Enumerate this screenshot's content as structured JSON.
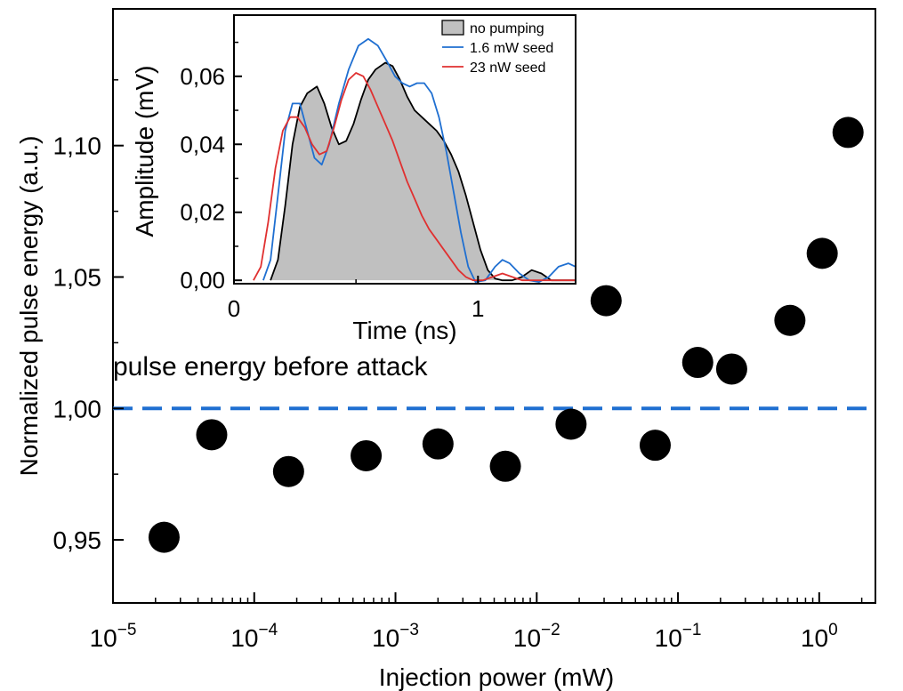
{
  "chart_data": [
    {
      "type": "scatter",
      "xlabel": "Injection power (mW)",
      "ylabel": "Normalized pulse energy (a.u.)",
      "xscale": "log",
      "xlim": [
        1e-05,
        2.5
      ],
      "ylim": [
        0.926,
        1.152
      ],
      "x_ticks": [
        {
          "value": 1e-05,
          "base": "10",
          "exp": "−5"
        },
        {
          "value": 0.0001,
          "base": "10",
          "exp": "−4"
        },
        {
          "value": 0.001,
          "base": "10",
          "exp": "−3"
        },
        {
          "value": 0.01,
          "base": "10",
          "exp": "−2"
        },
        {
          "value": 0.1,
          "base": "10",
          "exp": "−1"
        },
        {
          "value": 1,
          "base": "10",
          "exp": "0"
        }
      ],
      "y_ticks": [
        {
          "value": 0.95,
          "label": "0,95"
        },
        {
          "value": 1.0,
          "label": "1,00"
        },
        {
          "value": 1.05,
          "label": "1,05"
        },
        {
          "value": 1.1,
          "label": "1,10"
        }
      ],
      "points": [
        {
          "x": 2.3e-05,
          "y": 0.951
        },
        {
          "x": 5e-05,
          "y": 0.99
        },
        {
          "x": 0.000175,
          "y": 0.976
        },
        {
          "x": 0.00062,
          "y": 0.982
        },
        {
          "x": 0.002,
          "y": 0.9865
        },
        {
          "x": 0.006,
          "y": 0.978
        },
        {
          "x": 0.0175,
          "y": 0.994
        },
        {
          "x": 0.031,
          "y": 1.041
        },
        {
          "x": 0.069,
          "y": 0.986
        },
        {
          "x": 0.138,
          "y": 1.0175
        },
        {
          "x": 0.24,
          "y": 1.015
        },
        {
          "x": 0.62,
          "y": 1.0335
        },
        {
          "x": 1.05,
          "y": 1.059
        },
        {
          "x": 1.6,
          "y": 1.105
        }
      ],
      "point_color": "#000000",
      "reference_line": {
        "y": 1.0,
        "label": "pulse energy before attack",
        "color": "#1f6fd1"
      }
    },
    {
      "type": "line",
      "xlabel": "Time (ns)",
      "ylabel": "Amplitude (mV)",
      "xlim": [
        0,
        1.4
      ],
      "ylim": [
        -0.001,
        0.078
      ],
      "x_ticks": [
        {
          "value": 0,
          "label": "0"
        },
        {
          "value": 1,
          "label": "1"
        }
      ],
      "y_ticks": [
        {
          "value": 0,
          "label": "0,00"
        },
        {
          "value": 0.02,
          "label": "0,02"
        },
        {
          "value": 0.04,
          "label": "0,04"
        },
        {
          "value": 0.06,
          "label": "0,06"
        }
      ],
      "series": [
        {
          "name": "no pumping",
          "style": "filled",
          "color": "#000000",
          "fill": "#c0c0c0",
          "points": [
            [
              0.15,
              0
            ],
            [
              0.18,
              0.006
            ],
            [
              0.21,
              0.022
            ],
            [
              0.24,
              0.04
            ],
            [
              0.27,
              0.051
            ],
            [
              0.3,
              0.055
            ],
            [
              0.34,
              0.057
            ],
            [
              0.37,
              0.052
            ],
            [
              0.4,
              0.045
            ],
            [
              0.43,
              0.04
            ],
            [
              0.46,
              0.041
            ],
            [
              0.49,
              0.046
            ],
            [
              0.52,
              0.053
            ],
            [
              0.55,
              0.059
            ],
            [
              0.58,
              0.062
            ],
            [
              0.62,
              0.064
            ],
            [
              0.65,
              0.063
            ],
            [
              0.68,
              0.059
            ],
            [
              0.71,
              0.054
            ],
            [
              0.74,
              0.05
            ],
            [
              0.77,
              0.048
            ],
            [
              0.8,
              0.046
            ],
            [
              0.83,
              0.044
            ],
            [
              0.86,
              0.041
            ],
            [
              0.89,
              0.037
            ],
            [
              0.92,
              0.032
            ],
            [
              0.95,
              0.025
            ],
            [
              0.98,
              0.017
            ],
            [
              1.01,
              0.009
            ],
            [
              1.04,
              0.003
            ],
            [
              1.07,
              0.0005
            ],
            [
              1.1,
              0
            ],
            [
              1.14,
              0
            ],
            [
              1.18,
              0.001
            ],
            [
              1.22,
              0.003
            ],
            [
              1.26,
              0.002
            ],
            [
              1.3,
              0
            ],
            [
              1.4,
              0
            ]
          ]
        },
        {
          "name": "1.6 mW seed",
          "style": "line",
          "color": "#1f6fd1",
          "points": [
            [
              0.12,
              0
            ],
            [
              0.15,
              0.006
            ],
            [
              0.18,
              0.025
            ],
            [
              0.21,
              0.044
            ],
            [
              0.24,
              0.052
            ],
            [
              0.27,
              0.052
            ],
            [
              0.3,
              0.044
            ],
            [
              0.33,
              0.036
            ],
            [
              0.36,
              0.034
            ],
            [
              0.39,
              0.04
            ],
            [
              0.43,
              0.052
            ],
            [
              0.47,
              0.062
            ],
            [
              0.51,
              0.069
            ],
            [
              0.55,
              0.071
            ],
            [
              0.59,
              0.069
            ],
            [
              0.63,
              0.064
            ],
            [
              0.66,
              0.06
            ],
            [
              0.69,
              0.058
            ],
            [
              0.72,
              0.057
            ],
            [
              0.75,
              0.058
            ],
            [
              0.78,
              0.058
            ],
            [
              0.81,
              0.055
            ],
            [
              0.84,
              0.048
            ],
            [
              0.87,
              0.038
            ],
            [
              0.9,
              0.026
            ],
            [
              0.93,
              0.014
            ],
            [
              0.96,
              0.004
            ],
            [
              0.99,
              -0.0005
            ],
            [
              1.03,
              0
            ],
            [
              1.07,
              0.004
            ],
            [
              1.1,
              0.006
            ],
            [
              1.13,
              0.005
            ],
            [
              1.17,
              0.002
            ],
            [
              1.21,
              0
            ],
            [
              1.25,
              -0.0005
            ],
            [
              1.29,
              0.001
            ],
            [
              1.33,
              0.004
            ],
            [
              1.37,
              0.005
            ],
            [
              1.4,
              0.004
            ]
          ]
        },
        {
          "name": "23 nW seed",
          "style": "line",
          "color": "#e03030",
          "points": [
            [
              0.08,
              0
            ],
            [
              0.11,
              0.004
            ],
            [
              0.14,
              0.017
            ],
            [
              0.17,
              0.033
            ],
            [
              0.2,
              0.044
            ],
            [
              0.23,
              0.048
            ],
            [
              0.26,
              0.048
            ],
            [
              0.29,
              0.045
            ],
            [
              0.32,
              0.04
            ],
            [
              0.35,
              0.037
            ],
            [
              0.38,
              0.038
            ],
            [
              0.41,
              0.045
            ],
            [
              0.44,
              0.053
            ],
            [
              0.47,
              0.059
            ],
            [
              0.5,
              0.061
            ],
            [
              0.53,
              0.06
            ],
            [
              0.56,
              0.056
            ],
            [
              0.59,
              0.051
            ],
            [
              0.62,
              0.046
            ],
            [
              0.65,
              0.041
            ],
            [
              0.68,
              0.035
            ],
            [
              0.71,
              0.029
            ],
            [
              0.74,
              0.024
            ],
            [
              0.77,
              0.019
            ],
            [
              0.8,
              0.015
            ],
            [
              0.83,
              0.012
            ],
            [
              0.86,
              0.009
            ],
            [
              0.89,
              0.006
            ],
            [
              0.92,
              0.003
            ],
            [
              0.95,
              0.001
            ],
            [
              0.98,
              0
            ],
            [
              1.02,
              0
            ],
            [
              1.06,
              0.001
            ],
            [
              1.1,
              0.002
            ],
            [
              1.14,
              0.001
            ],
            [
              1.18,
              0
            ],
            [
              1.4,
              0
            ]
          ]
        }
      ],
      "legend_position": "top-right"
    }
  ]
}
